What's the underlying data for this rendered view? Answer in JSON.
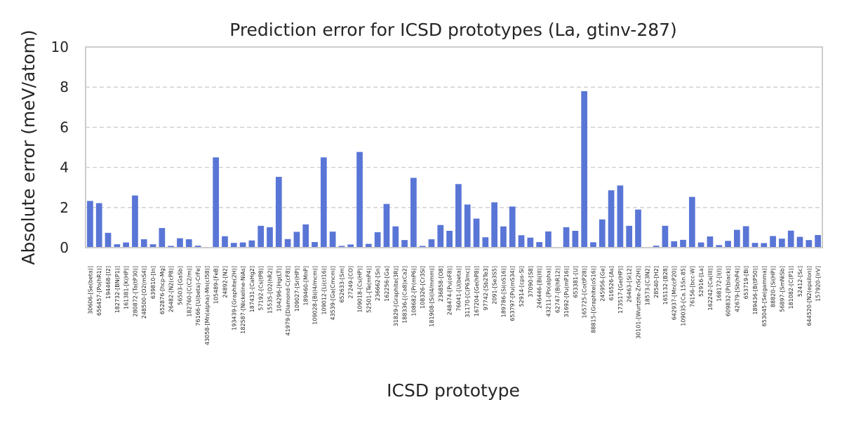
{
  "chart_data": {
    "type": "bar",
    "title": "Prediction error for ICSD prototypes (La, gtinv-287)",
    "xlabel": "ICSD prototype",
    "ylabel": "Absolute error (meV/atom)",
    "ylim": [
      0,
      10
    ],
    "yticks": [
      0,
      2,
      4,
      6,
      8,
      10
    ],
    "grid": "y-dashed",
    "bar_color": "#5975d6",
    "categories": [
      "30606-[Se(beta)]",
      "656457-[Po(hR1)]",
      "194468-[I2]",
      "182732-[BN(P1)]",
      "161381-[K(HP)]",
      "280872-[Ta(tP30)]",
      "248500-[O2(mS4)]",
      "639810-[In]",
      "652876-[hcp-Mg]",
      "26482-[N2(cP8)]",
      "56503-[GaSb]",
      "182760-[C(C2/m)]",
      "76166-[U(beta)-CrFe]",
      "43058-[Mn(alpha)-Mn(cI58)]",
      "105489-[FeB]",
      "24892-[N2]",
      "193439-[Graphite(2H)]",
      "182587-[Nickeline-NiAs]",
      "187431-[CaHg2]",
      "57192-[Cs(tP8)]",
      "15535-[O2(hR2)]",
      "104296-[Hg(LT)]",
      "41979-[Diamond-C(cF8)]",
      "109027-[Sr(HP)]",
      "189460-[MnP]",
      "109028-[Bi(I4/mcm)]",
      "109012-[Li(cI16)]",
      "43539-[Ga(Cmcm)]",
      "652633-[Sm]",
      "27249-[CO]",
      "109018-[Cs(HP)]",
      "52501-[Te(mP4)]",
      "236662-[Sn]",
      "162256-[Ga]",
      "31829-[Graphite(3R)]",
      "188336-[(Ca8)xCa2]",
      "108682-[Pr(mP6)]",
      "108326-[Cr3Si]",
      "181908-[Si(I4/mmm)]",
      "236858-[O8]",
      "248474-[Pu(oF8)]",
      "76041-[U(beta)]",
      "31170-[C(P63mc)]",
      "167204-[Ge(hP8)]",
      "97742-[Sb2Te3]",
      "2091-[Se3S5]",
      "189786-[Si(oS16)]",
      "653797-[Pu(mS34)]",
      "52914-[cps-Si]",
      "37090-[S8]",
      "246446-[Bi(III)]",
      "43211-[Po(alpha)]",
      "62747-[B(hR12)]",
      "31692-[Pu(mP16)]",
      "653381-[U]",
      "165725-[Co(tP28)]",
      "88815-[Graphite(oS16)]",
      "245956-[Ge]",
      "616526-[As]",
      "173517-[Ge(HP)]",
      "26463-[Si12]",
      "30101-[Wurtzite-ZnS(2H)]",
      "18573-[C3N2]",
      "28540-[H2]",
      "165132-[B28]",
      "642937-[Mn(cP20)]",
      "109035-[Ca.15Sn.85]",
      "76156-[bcc-W]",
      "52916-[La]",
      "162242-[Ca(III)]",
      "168172-[I(I)]",
      "609832-[P(black)]",
      "42679-[Sb(hP4)]",
      "653719-[Bi]",
      "189436-[B(tP50)]",
      "653045-[Se(gamma)]",
      "88820-[Si(HP)]",
      "56897-[SmNiSb]",
      "181082-[C(P1)]",
      "52412-[Sc]",
      "644520-[N2(epsilon)]",
      "157920-[IrV]"
    ],
    "values": [
      2.33,
      2.22,
      0.74,
      0.17,
      0.26,
      2.6,
      0.42,
      0.17,
      0.98,
      0.09,
      0.47,
      0.42,
      0.1,
      0.02,
      4.5,
      0.57,
      0.24,
      0.26,
      0.36,
      1.09,
      1.02,
      3.53,
      0.43,
      0.79,
      1.16,
      0.28,
      4.5,
      0.8,
      0.09,
      0.16,
      4.77,
      0.19,
      0.77,
      2.18,
      1.06,
      0.38,
      3.48,
      0.09,
      0.42,
      1.13,
      0.84,
      3.17,
      2.15,
      1.45,
      0.52,
      2.26,
      1.06,
      2.05,
      0.62,
      0.5,
      0.28,
      0.81,
      0.01,
      1.02,
      0.84,
      7.8,
      0.27,
      1.41,
      2.86,
      3.1,
      1.09,
      1.9,
      0.0,
      0.1,
      1.09,
      0.32,
      0.39,
      2.53,
      0.26,
      0.56,
      0.13,
      0.34,
      0.89,
      1.07,
      0.24,
      0.23,
      0.58,
      0.45,
      0.85,
      0.54,
      0.38,
      0.63
    ]
  }
}
